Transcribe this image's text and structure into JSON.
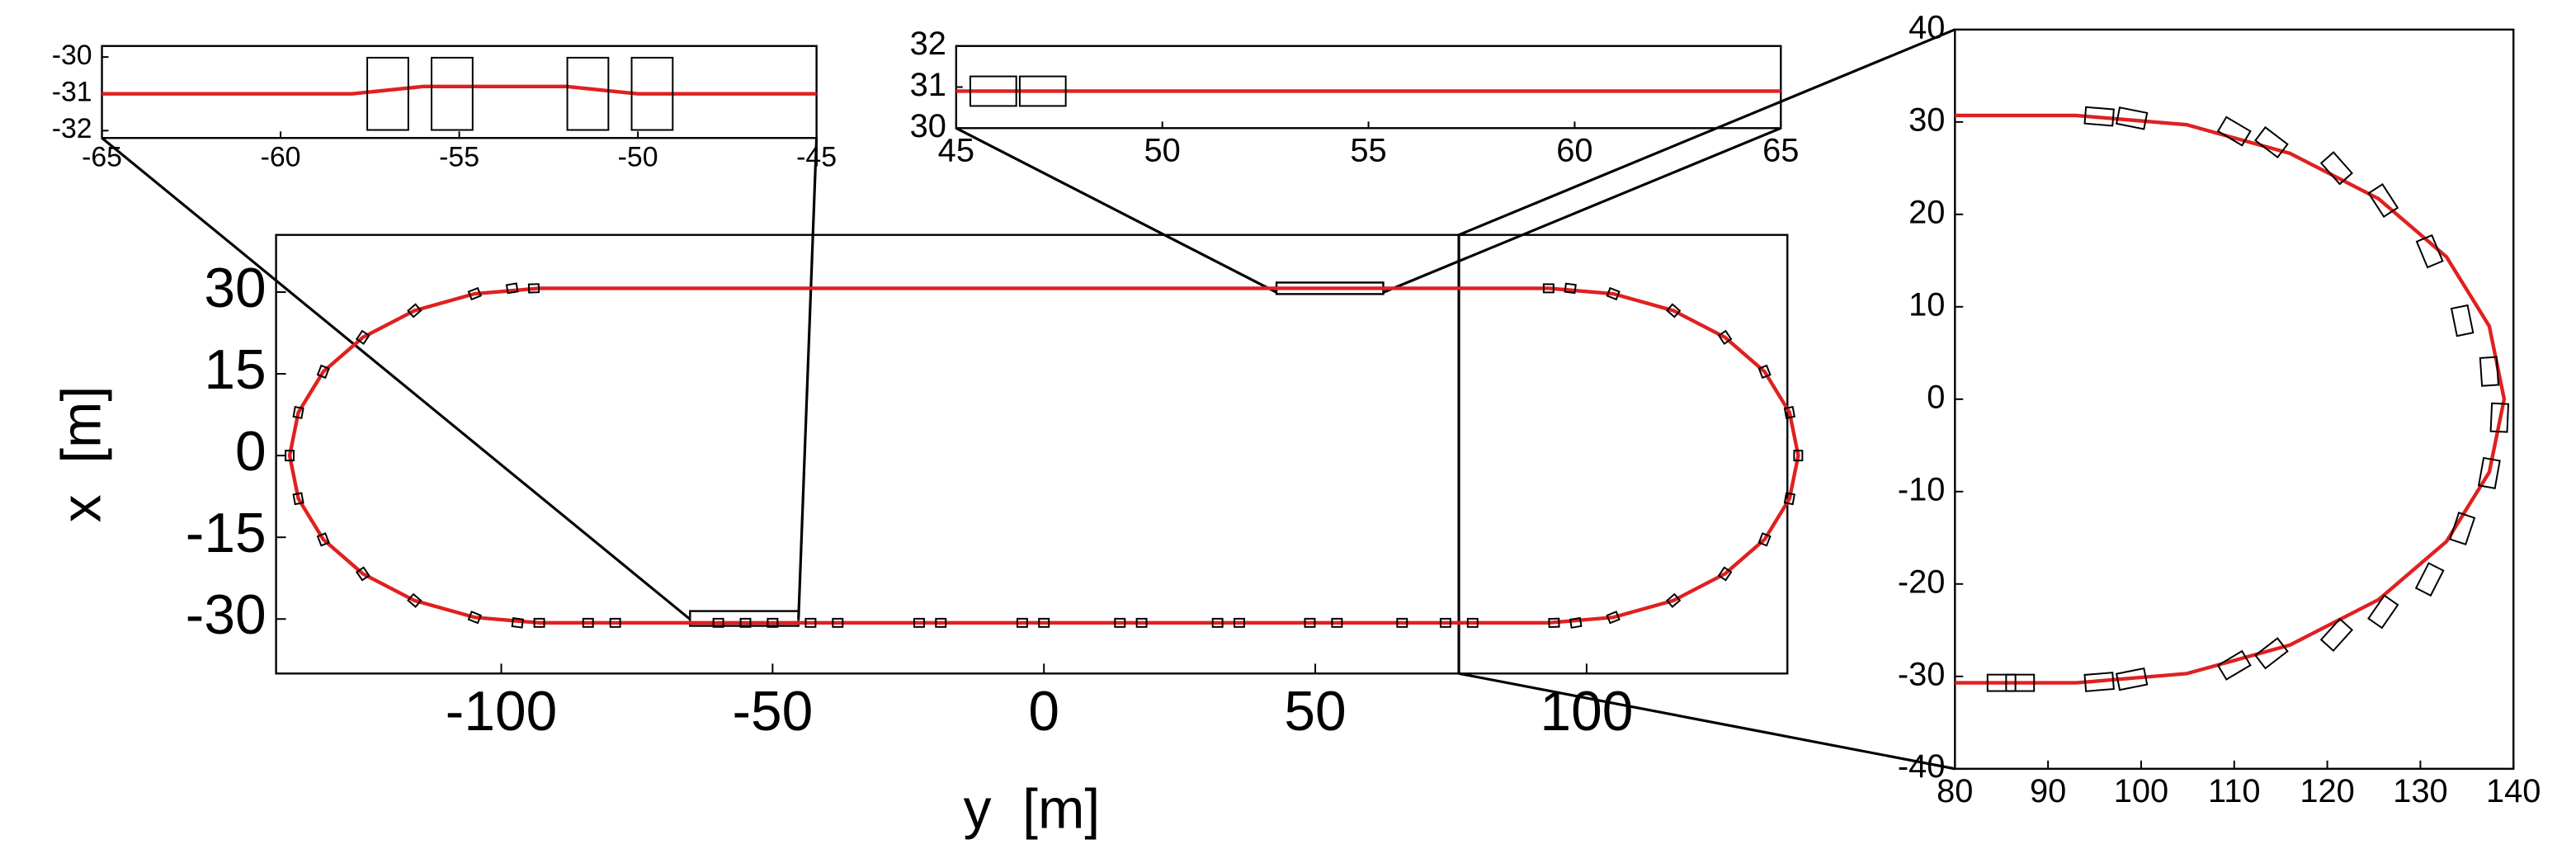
{
  "chart_data": [
    {
      "type": "line",
      "xlabel": "y  [m]",
      "ylabel": "x  [m]",
      "xlim": [
        -141.5,
        137
      ],
      "ylim": [
        -40,
        40.5
      ],
      "xticks": [
        -100,
        -50,
        0,
        50,
        100
      ],
      "yticks": [
        -30,
        -15,
        0,
        15,
        30
      ],
      "track": {
        "color": "#e02020",
        "x": [
          -93,
          93,
          104.9,
          116,
          125.5,
          132.8,
          137.4,
          139,
          137.4,
          132.8,
          125.5,
          116,
          104.9,
          93,
          -93,
          -104.9,
          -116,
          -125.5,
          -132.8,
          -137.4,
          -139,
          -137.4,
          -132.8,
          -125.5,
          -116,
          -104.9,
          -93
        ],
        "values": [
          30.7,
          30.7,
          29.7,
          26.6,
          21.7,
          15.4,
          7.9,
          0,
          -7.9,
          -15.4,
          -21.7,
          -26.6,
          -29.7,
          -30.7,
          -30.7,
          -29.7,
          -26.6,
          -21.7,
          -15.4,
          -7.9,
          0,
          7.9,
          15.4,
          21.7,
          26.6,
          29.7,
          30.7
        ]
      },
      "vehicles": {
        "x": [
          104.9,
          116,
          125.5,
          132.8,
          137.4,
          139,
          137.4,
          132.8,
          125.5,
          116,
          104.9,
          -104.9,
          -116,
          -125.5,
          -132.8,
          -137.4,
          -139,
          -137.4,
          -132.8,
          -125.5,
          -116,
          -104.9,
          -98,
          -94,
          93,
          97,
          -97,
          -93,
          -84,
          -79,
          -60,
          -55,
          -50,
          -43,
          -38,
          -23,
          -19,
          -4,
          0,
          14,
          18,
          32,
          36,
          49,
          54,
          66,
          74,
          79,
          94,
          98
        ],
        "values": [
          29.7,
          26.6,
          21.7,
          15.4,
          7.9,
          0,
          -7.9,
          -15.4,
          -21.7,
          -26.6,
          -29.7,
          -29.7,
          -26.6,
          -21.7,
          -15.4,
          -7.9,
          0,
          7.9,
          15.4,
          21.7,
          26.6,
          29.7,
          30.7,
          30.7,
          30.7,
          30.7,
          -30.7,
          -30.7,
          -30.7,
          -30.7,
          -30.7,
          -30.7,
          -30.7,
          -30.7,
          -30.7,
          -30.7,
          -30.7,
          -30.7,
          -30.7,
          -30.7,
          -30.7,
          -30.7,
          -30.7,
          -30.7,
          -30.7,
          -30.7,
          -30.7,
          -30.7,
          -30.7,
          -30.7
        ]
      }
    },
    {
      "type": "line",
      "xlim": [
        -65,
        -45
      ],
      "ylim": [
        -32.2,
        -29.7
      ],
      "xticks": [
        -65,
        -60,
        -55,
        -50,
        -45
      ],
      "yticks": [
        -30,
        -31,
        -32
      ],
      "track": {
        "color": "#e02020",
        "x": [
          -65,
          -58,
          -56,
          -52,
          -50,
          -45
        ],
        "values": [
          -31,
          -31,
          -30.8,
          -30.8,
          -31,
          -31
        ]
      },
      "vehicles": {
        "x": [
          -57,
          -55.2,
          -51.4,
          -49.6
        ],
        "values": [
          -31,
          -31,
          -31,
          -31
        ]
      }
    },
    {
      "type": "line",
      "xlim": [
        45,
        65
      ],
      "ylim": [
        30,
        32
      ],
      "xticks": [
        45,
        50,
        55,
        60,
        65
      ],
      "yticks": [
        32,
        31,
        30
      ],
      "track": {
        "color": "#e02020",
        "x": [
          45,
          65
        ],
        "values": [
          30.9,
          30.9
        ]
      },
      "vehicles": {
        "x": [
          45.9,
          47.1
        ],
        "values": [
          30.9,
          30.9
        ]
      }
    },
    {
      "type": "line",
      "xlim": [
        80,
        140
      ],
      "ylim": [
        -40,
        40
      ],
      "xticks": [
        80,
        90,
        100,
        110,
        120,
        130,
        140
      ],
      "yticks": [
        -40,
        -30,
        -20,
        -10,
        0,
        10,
        20,
        30,
        40
      ],
      "track": {
        "color": "#e02020",
        "x": [
          80,
          93,
          104.9,
          116,
          125.5,
          132.8,
          137.4,
          139,
          137.4,
          132.8,
          125.5,
          116,
          104.9,
          93,
          80
        ],
        "values": [
          30.7,
          30.7,
          29.7,
          26.6,
          21.7,
          15.4,
          7.9,
          0,
          -7.9,
          -15.4,
          -21.7,
          -26.6,
          -29.7,
          -30.7,
          -30.7
        ]
      },
      "vehicles": {
        "x": [
          95.5,
          99,
          110,
          114,
          121,
          126,
          131,
          134.5,
          137.4,
          138.5,
          137.4,
          134.5,
          131,
          126,
          121,
          114,
          110,
          99,
          95.5,
          85,
          87
        ],
        "values": [
          30.6,
          30.4,
          29,
          27.8,
          25,
          21.5,
          16,
          8.5,
          3,
          -2,
          -8,
          -14,
          -19.5,
          -23,
          -25.5,
          -27.5,
          -28.8,
          -30.3,
          -30.6,
          -30.7,
          -30.7
        ]
      }
    }
  ]
}
